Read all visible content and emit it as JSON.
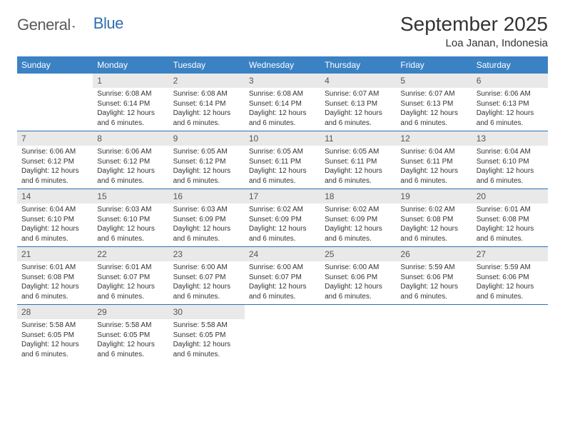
{
  "brand": {
    "word1": "General",
    "word2": "Blue",
    "logo_color": "#2f6fb0",
    "text_color": "#5a5a5a"
  },
  "title": "September 2025",
  "location": "Loa Janan, Indonesia",
  "colors": {
    "header_bg": "#3b82c4",
    "header_fg": "#ffffff",
    "daynum_bg": "#e9e9e9",
    "rule": "#2f6fb0",
    "text": "#333333"
  },
  "weekdays": [
    "Sunday",
    "Monday",
    "Tuesday",
    "Wednesday",
    "Thursday",
    "Friday",
    "Saturday"
  ],
  "weeks": [
    [
      null,
      {
        "n": "1",
        "sr": "6:08 AM",
        "ss": "6:14 PM",
        "dl": "12 hours and 6 minutes."
      },
      {
        "n": "2",
        "sr": "6:08 AM",
        "ss": "6:14 PM",
        "dl": "12 hours and 6 minutes."
      },
      {
        "n": "3",
        "sr": "6:08 AM",
        "ss": "6:14 PM",
        "dl": "12 hours and 6 minutes."
      },
      {
        "n": "4",
        "sr": "6:07 AM",
        "ss": "6:13 PM",
        "dl": "12 hours and 6 minutes."
      },
      {
        "n": "5",
        "sr": "6:07 AM",
        "ss": "6:13 PM",
        "dl": "12 hours and 6 minutes."
      },
      {
        "n": "6",
        "sr": "6:06 AM",
        "ss": "6:13 PM",
        "dl": "12 hours and 6 minutes."
      }
    ],
    [
      {
        "n": "7",
        "sr": "6:06 AM",
        "ss": "6:12 PM",
        "dl": "12 hours and 6 minutes."
      },
      {
        "n": "8",
        "sr": "6:06 AM",
        "ss": "6:12 PM",
        "dl": "12 hours and 6 minutes."
      },
      {
        "n": "9",
        "sr": "6:05 AM",
        "ss": "6:12 PM",
        "dl": "12 hours and 6 minutes."
      },
      {
        "n": "10",
        "sr": "6:05 AM",
        "ss": "6:11 PM",
        "dl": "12 hours and 6 minutes."
      },
      {
        "n": "11",
        "sr": "6:05 AM",
        "ss": "6:11 PM",
        "dl": "12 hours and 6 minutes."
      },
      {
        "n": "12",
        "sr": "6:04 AM",
        "ss": "6:11 PM",
        "dl": "12 hours and 6 minutes."
      },
      {
        "n": "13",
        "sr": "6:04 AM",
        "ss": "6:10 PM",
        "dl": "12 hours and 6 minutes."
      }
    ],
    [
      {
        "n": "14",
        "sr": "6:04 AM",
        "ss": "6:10 PM",
        "dl": "12 hours and 6 minutes."
      },
      {
        "n": "15",
        "sr": "6:03 AM",
        "ss": "6:10 PM",
        "dl": "12 hours and 6 minutes."
      },
      {
        "n": "16",
        "sr": "6:03 AM",
        "ss": "6:09 PM",
        "dl": "12 hours and 6 minutes."
      },
      {
        "n": "17",
        "sr": "6:02 AM",
        "ss": "6:09 PM",
        "dl": "12 hours and 6 minutes."
      },
      {
        "n": "18",
        "sr": "6:02 AM",
        "ss": "6:09 PM",
        "dl": "12 hours and 6 minutes."
      },
      {
        "n": "19",
        "sr": "6:02 AM",
        "ss": "6:08 PM",
        "dl": "12 hours and 6 minutes."
      },
      {
        "n": "20",
        "sr": "6:01 AM",
        "ss": "6:08 PM",
        "dl": "12 hours and 6 minutes."
      }
    ],
    [
      {
        "n": "21",
        "sr": "6:01 AM",
        "ss": "6:08 PM",
        "dl": "12 hours and 6 minutes."
      },
      {
        "n": "22",
        "sr": "6:01 AM",
        "ss": "6:07 PM",
        "dl": "12 hours and 6 minutes."
      },
      {
        "n": "23",
        "sr": "6:00 AM",
        "ss": "6:07 PM",
        "dl": "12 hours and 6 minutes."
      },
      {
        "n": "24",
        "sr": "6:00 AM",
        "ss": "6:07 PM",
        "dl": "12 hours and 6 minutes."
      },
      {
        "n": "25",
        "sr": "6:00 AM",
        "ss": "6:06 PM",
        "dl": "12 hours and 6 minutes."
      },
      {
        "n": "26",
        "sr": "5:59 AM",
        "ss": "6:06 PM",
        "dl": "12 hours and 6 minutes."
      },
      {
        "n": "27",
        "sr": "5:59 AM",
        "ss": "6:06 PM",
        "dl": "12 hours and 6 minutes."
      }
    ],
    [
      {
        "n": "28",
        "sr": "5:58 AM",
        "ss": "6:05 PM",
        "dl": "12 hours and 6 minutes."
      },
      {
        "n": "29",
        "sr": "5:58 AM",
        "ss": "6:05 PM",
        "dl": "12 hours and 6 minutes."
      },
      {
        "n": "30",
        "sr": "5:58 AM",
        "ss": "6:05 PM",
        "dl": "12 hours and 6 minutes."
      },
      null,
      null,
      null,
      null
    ]
  ],
  "labels": {
    "sunrise": "Sunrise:",
    "sunset": "Sunset:",
    "daylight": "Daylight:"
  }
}
